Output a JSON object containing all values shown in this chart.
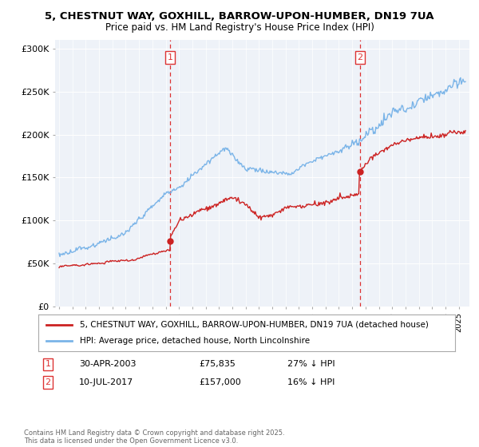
{
  "title_line1": "5, CHESTNUT WAY, GOXHILL, BARROW-UPON-HUMBER, DN19 7UA",
  "title_line2": "Price paid vs. HM Land Registry's House Price Index (HPI)",
  "legend_line1": "5, CHESTNUT WAY, GOXHILL, BARROW-UPON-HUMBER, DN19 7UA (detached house)",
  "legend_line2": "HPI: Average price, detached house, North Lincolnshire",
  "transaction1_date": "30-APR-2003",
  "transaction1_price": "£75,835",
  "transaction1_hpi": "27% ↓ HPI",
  "transaction2_date": "10-JUL-2017",
  "transaction2_price": "£157,000",
  "transaction2_hpi": "16% ↓ HPI",
  "footer": "Contains HM Land Registry data © Crown copyright and database right 2025.\nThis data is licensed under the Open Government Licence v3.0.",
  "hpi_color": "#7ab4e8",
  "property_color": "#cc2222",
  "vline_color": "#dd3333",
  "background_color": "#eef2f8",
  "ylim": [
    0,
    310000
  ],
  "xlim_min": 1994.7,
  "xlim_max": 2025.8
}
